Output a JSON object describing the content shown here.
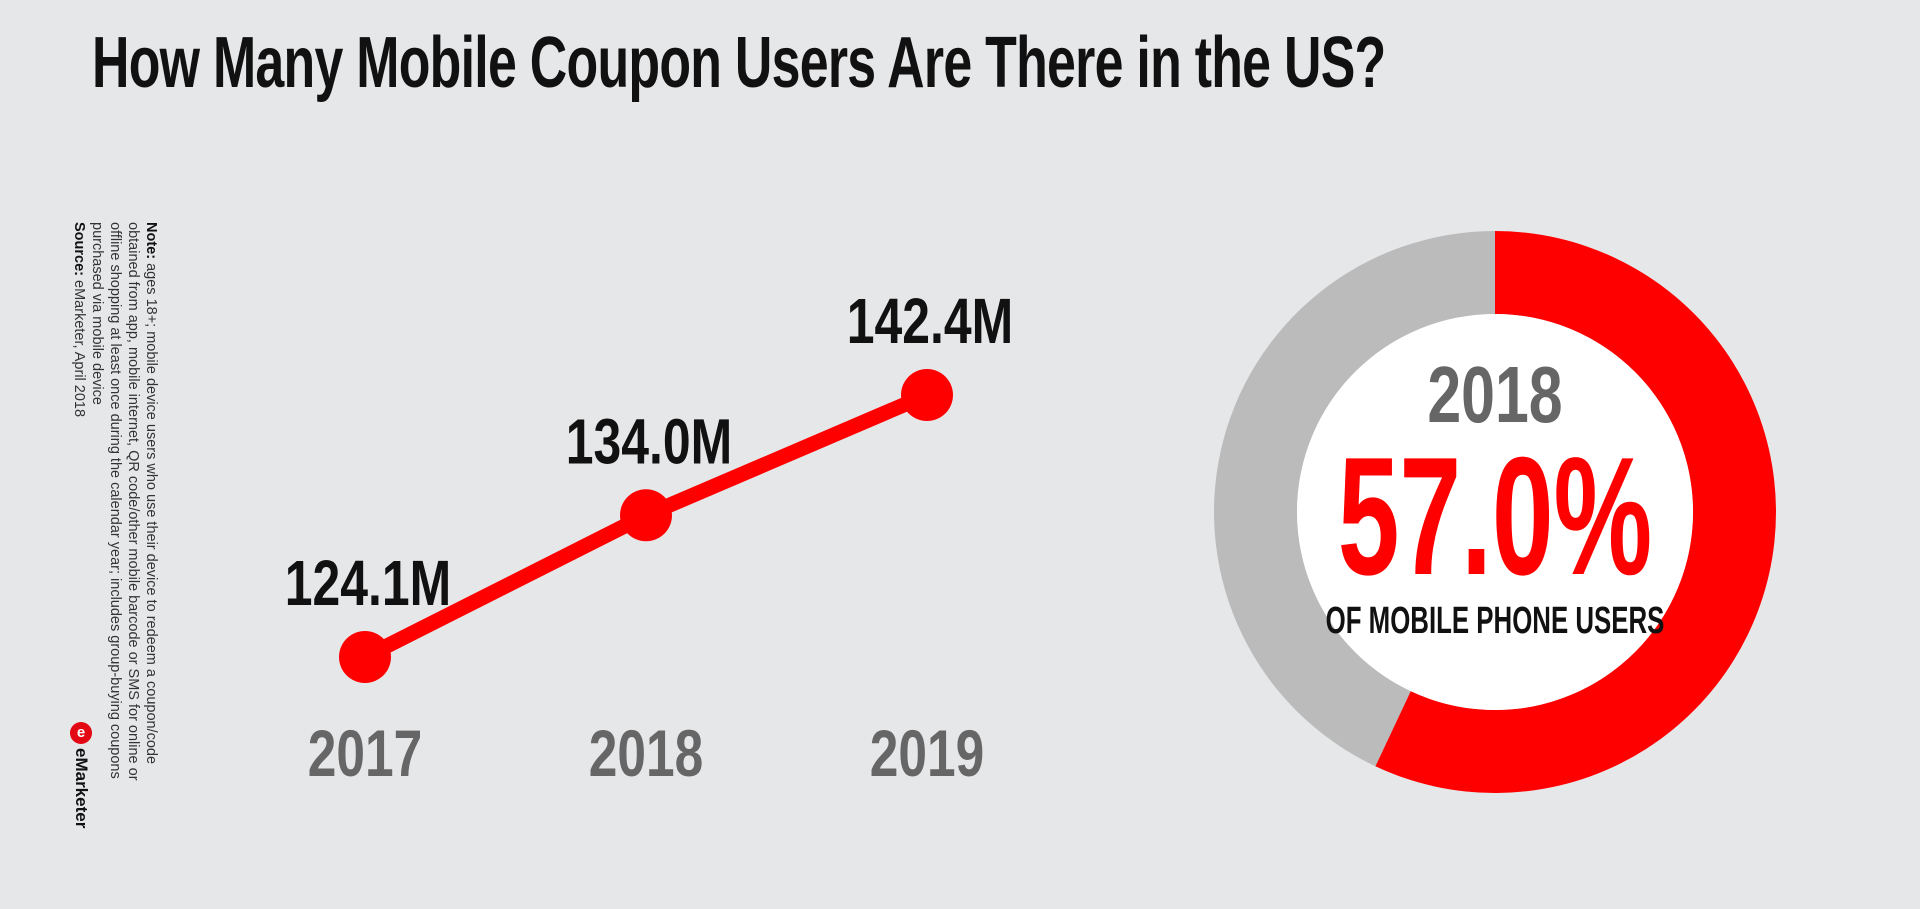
{
  "title": "How Many Mobile Coupon Users Are There in the US?",
  "note_label": "Note:",
  "note_text": "ages 18+; mobile device users who use their device to redeem a coupon/code obtained from app, mobile internet, QR code/other mobile barcode or SMS for online or offline shopping at least once during the calendar year; includes group-buying coupons purchased via mobile device",
  "source_label": "Source:",
  "source_text": "eMarketer, April 2018",
  "brand": {
    "name": "eMarketer",
    "logo_glyph": "e"
  },
  "colors": {
    "accent": "#ff0000",
    "gray_ring": "#bbbbbb",
    "year_text": "#666666",
    "background": "#e6e7e9"
  },
  "chart_data": [
    {
      "type": "line",
      "categories": [
        "2017",
        "2018",
        "2019"
      ],
      "values": [
        124.1,
        134.0,
        142.4
      ],
      "data_labels": [
        "124.1M",
        "134.0M",
        "142.4M"
      ],
      "title": "",
      "xlabel": "",
      "ylabel": ""
    },
    {
      "type": "pie",
      "style": "donut",
      "labels": [
        "",
        ""
      ],
      "values": [
        57.0,
        43.0
      ],
      "center_year": "2018",
      "center_value": "57.0%",
      "center_caption": "OF MOBILE PHONE USERS"
    }
  ]
}
